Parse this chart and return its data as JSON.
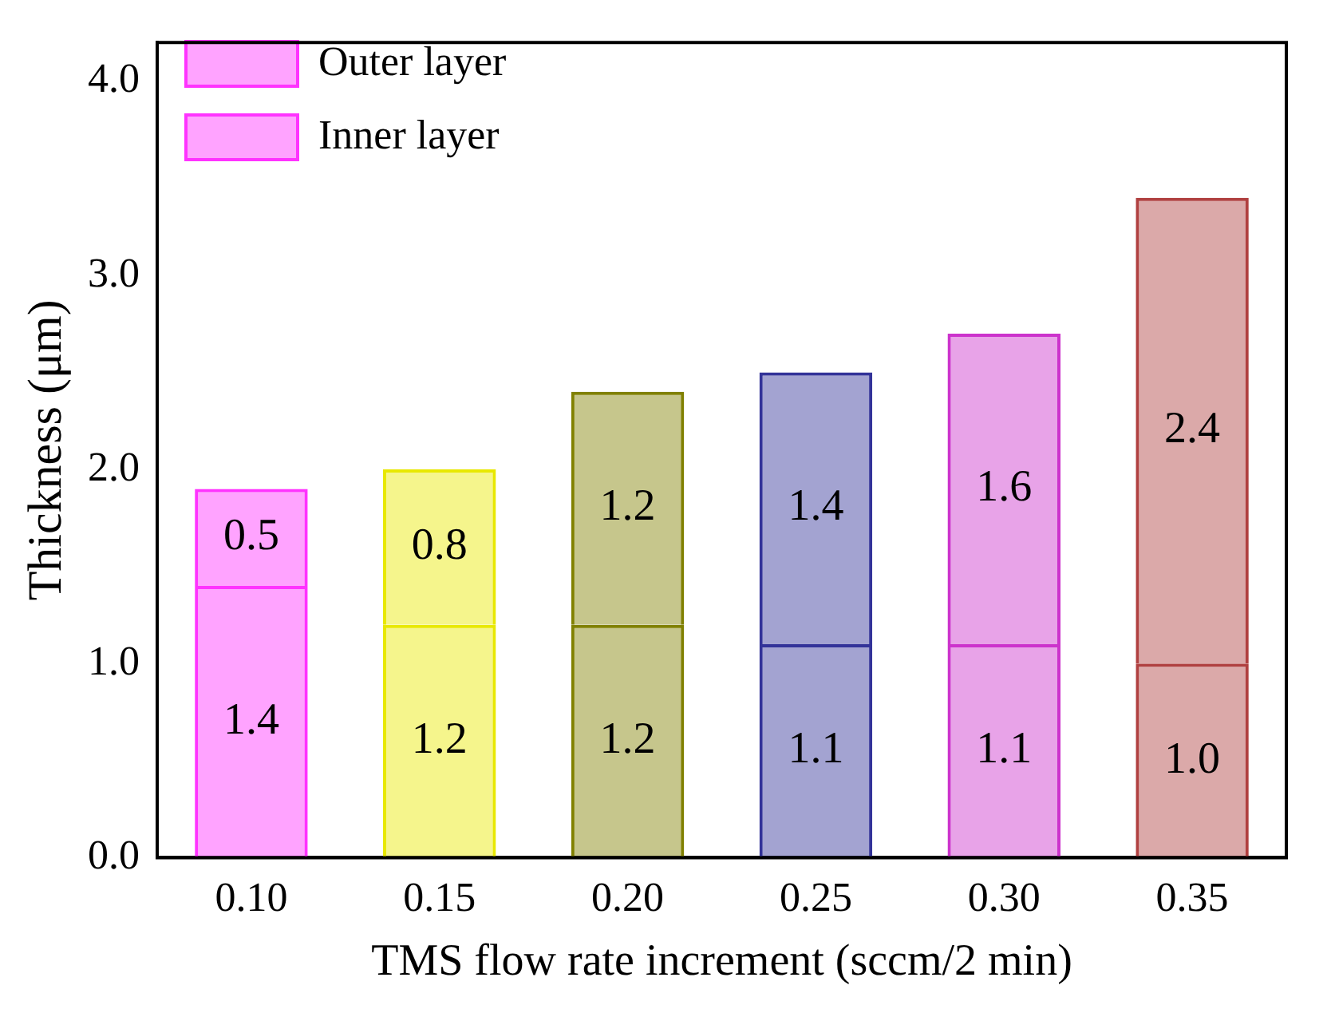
{
  "chart_data": {
    "type": "bar",
    "stacked": true,
    "xlabel": "TMS flow rate increment (sccm/2 min)",
    "ylabel": "Thickness (μm)",
    "categories": [
      "0.10",
      "0.15",
      "0.20",
      "0.25",
      "0.30",
      "0.35"
    ],
    "series": [
      {
        "name": "Inner layer",
        "values": [
          1.4,
          1.2,
          1.2,
          1.1,
          1.1,
          1.0
        ],
        "value_labels": [
          "1.4",
          "1.2",
          "1.2",
          "1.1",
          "1.1",
          "1.0"
        ],
        "colors": [
          "#ff33ff",
          "#e8e800",
          "#808000",
          "#333399",
          "#cc33cc",
          "#b04040"
        ]
      },
      {
        "name": "Outer layer",
        "values": [
          0.5,
          0.8,
          1.2,
          1.4,
          1.6,
          2.4
        ],
        "value_labels": [
          "0.5",
          "0.8",
          "1.2",
          "1.4",
          "1.6",
          "2.4"
        ],
        "colors": [
          "#ff33ff",
          "#e8e800",
          "#808000",
          "#333399",
          "#cc33cc",
          "#b04040"
        ]
      }
    ],
    "ylim": [
      0,
      4.2
    ],
    "yticks": [
      {
        "value": 0,
        "label": "0.0"
      },
      {
        "value": 1,
        "label": "1.0"
      },
      {
        "value": 2,
        "label": "2.0"
      },
      {
        "value": 3,
        "label": "3.0"
      },
      {
        "value": 4,
        "label": "4.0"
      }
    ],
    "legend": "top left",
    "grid": false
  }
}
